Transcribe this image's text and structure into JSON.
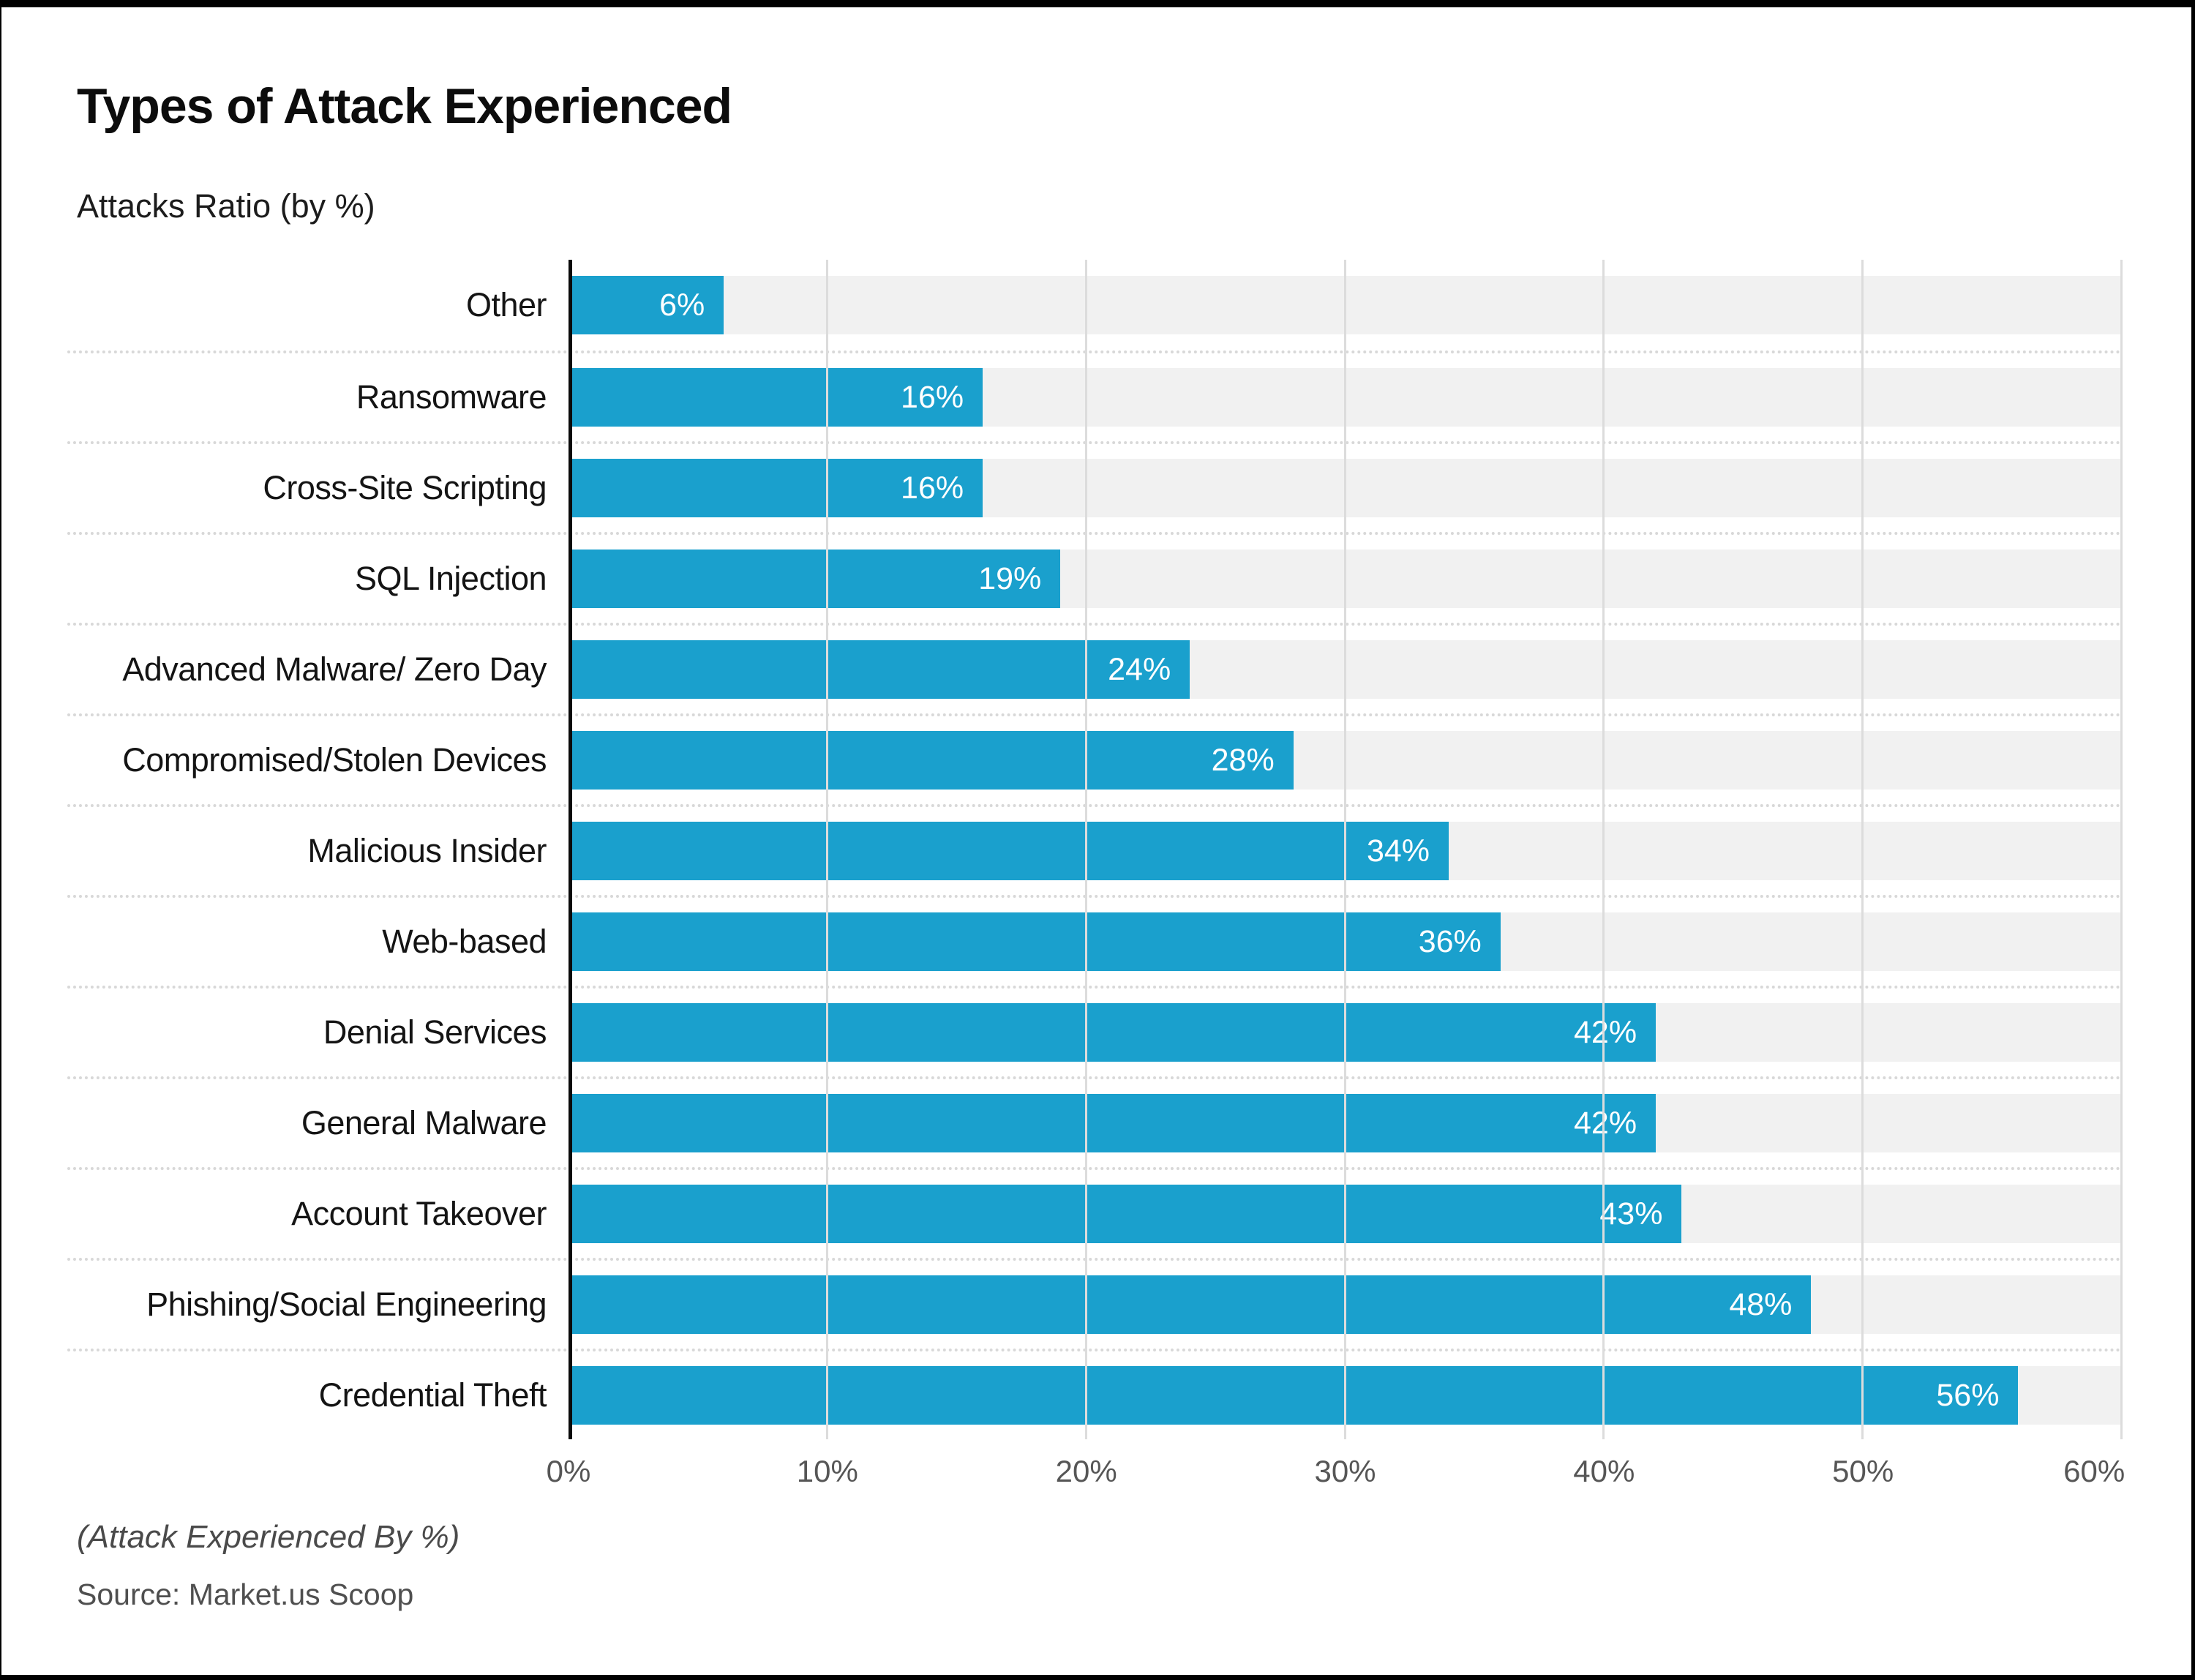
{
  "header": {
    "title": "Types of Attack Experienced",
    "subtitle": "Attacks Ratio (by %)"
  },
  "chart_data": {
    "type": "bar",
    "orientation": "horizontal",
    "title": "Types of Attack Experienced",
    "subtitle": "Attacks Ratio (by %)",
    "categories": [
      "Other",
      "Ransomware",
      "Cross-Site Scripting",
      "SQL Injection",
      "Advanced Malware/ Zero Day",
      "Compromised/Stolen Devices",
      "Malicious Insider",
      "Web-based",
      "Denial Services",
      "General Malware",
      "Account Takeover",
      "Phishing/Social Engineering",
      "Credential Theft"
    ],
    "values": [
      6,
      16,
      16,
      19,
      24,
      28,
      34,
      36,
      42,
      42,
      43,
      48,
      56
    ],
    "value_label_suffix": "%",
    "xlim": [
      0,
      60
    ],
    "x_ticks": [
      "0%",
      "10%",
      "20%",
      "30%",
      "40%",
      "50%",
      "60%"
    ],
    "grid": "vertical-solid, row-dotted-separators",
    "legend": "none",
    "colors": {
      "bar": "#1aa0cd",
      "bar_value_text": "#ffffff",
      "row_track": "#f1f1f1",
      "gridline": "#dcdcdc",
      "axis_line": "#0a0a0a",
      "tick_text": "#565656"
    }
  },
  "footer": {
    "note": "(Attack Experienced By %)",
    "source": "Source: Market.us Scoop"
  }
}
